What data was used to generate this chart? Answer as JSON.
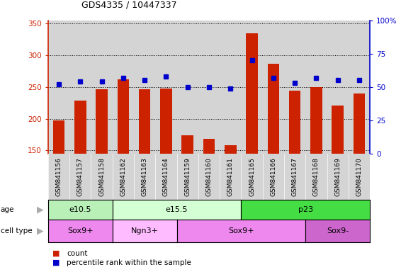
{
  "title": "GDS4335 / 10447337",
  "samples": [
    "GSM841156",
    "GSM841157",
    "GSM841158",
    "GSM841162",
    "GSM841163",
    "GSM841164",
    "GSM841159",
    "GSM841160",
    "GSM841161",
    "GSM841165",
    "GSM841166",
    "GSM841167",
    "GSM841168",
    "GSM841169",
    "GSM841170"
  ],
  "counts": [
    197,
    229,
    247,
    262,
    246,
    248,
    174,
    168,
    158,
    335,
    287,
    244,
    250,
    221,
    240
  ],
  "percentiles": [
    52,
    54,
    54,
    57,
    55,
    58,
    50,
    50,
    49,
    70,
    57,
    53,
    57,
    55,
    55
  ],
  "ylim_left": [
    145,
    355
  ],
  "ylim_right": [
    0,
    100
  ],
  "yticks_left": [
    150,
    200,
    250,
    300,
    350
  ],
  "yticks_right": [
    0,
    25,
    50,
    75,
    100
  ],
  "bar_color": "#cc2200",
  "dot_color": "#0000cc",
  "plot_bg": "#d4d4d4",
  "age_groups": [
    {
      "label": "e10.5",
      "start": 0,
      "end": 3,
      "color": "#b8f0b8"
    },
    {
      "label": "e15.5",
      "start": 3,
      "end": 9,
      "color": "#d4ffd4"
    },
    {
      "label": "p23",
      "start": 9,
      "end": 15,
      "color": "#44dd44"
    }
  ],
  "cell_groups": [
    {
      "label": "Sox9+",
      "start": 0,
      "end": 3,
      "color": "#ee88ee"
    },
    {
      "label": "Ngn3+",
      "start": 3,
      "end": 6,
      "color": "#ffbbff"
    },
    {
      "label": "Sox9+",
      "start": 6,
      "end": 12,
      "color": "#ee88ee"
    },
    {
      "label": "Sox9-",
      "start": 12,
      "end": 15,
      "color": "#cc66cc"
    }
  ],
  "legend_count_label": "count",
  "legend_pct_label": "percentile rank within the sample",
  "bg_color": "#ffffff",
  "left_axis_color": "#cc2200",
  "right_axis_color": "#0000cc",
  "arrow_color": "#aaaaaa"
}
